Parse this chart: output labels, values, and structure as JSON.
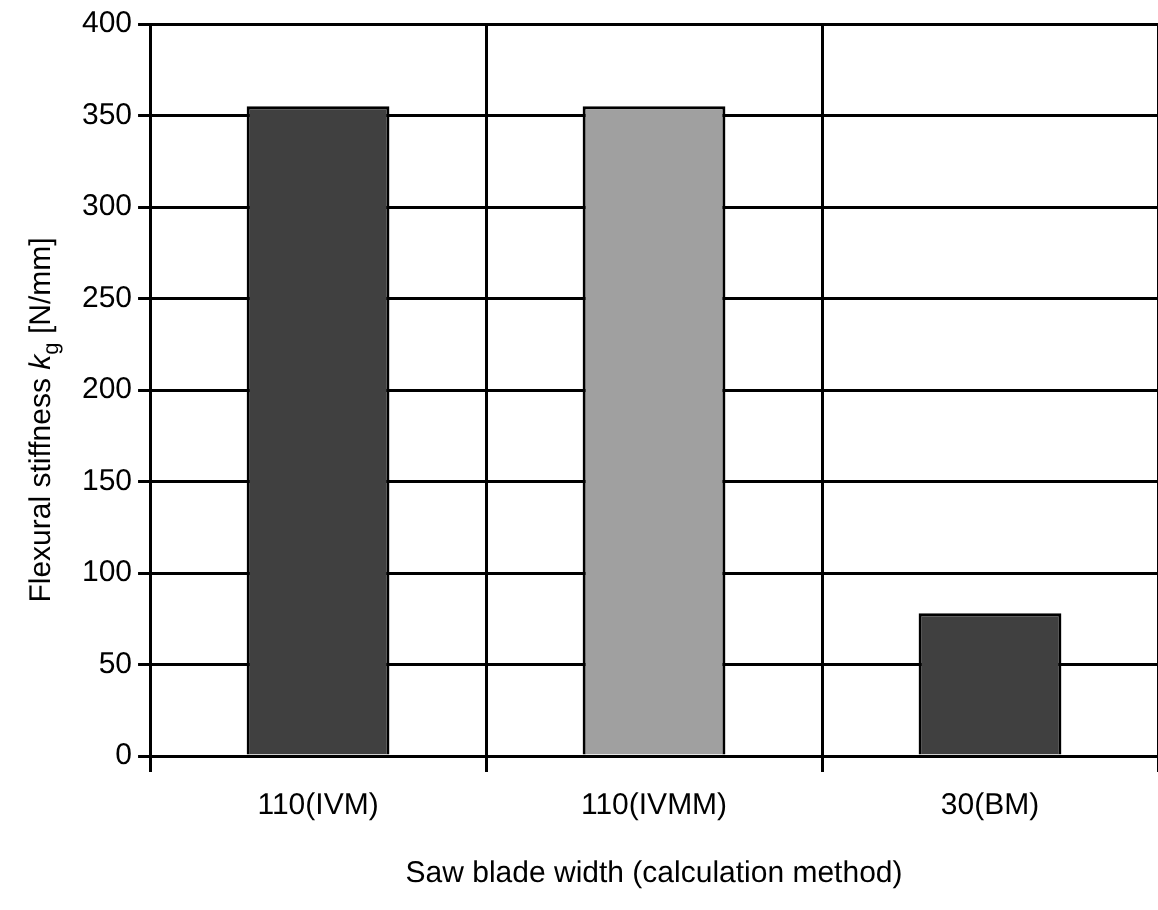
{
  "chart_data": {
    "type": "bar",
    "xlabel": "Saw blade width (calculation method)",
    "ylabel": "Flexural stiffness  k$_{g}$ [N/mm]",
    "categories": [
      "110(IVM)",
      "110(IVMM)",
      "30(BM)"
    ],
    "values": [
      355,
      355,
      78
    ],
    "colors": [
      "#404040",
      "#a0a0a0",
      "#404040"
    ],
    "ylim": [
      0,
      400
    ],
    "yticks": [
      0,
      50,
      100,
      150,
      200,
      250,
      300,
      350,
      400
    ],
    "grid": true,
    "legend": false
  }
}
